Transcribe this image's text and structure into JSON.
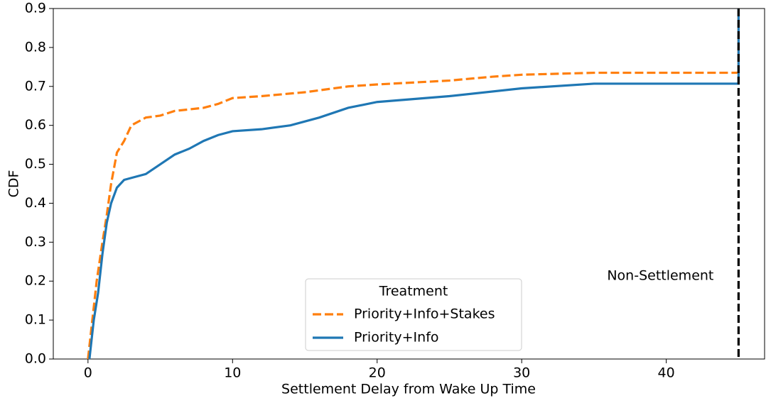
{
  "chart_data": {
    "type": "line",
    "xlabel": "Settlement Delay from Wake Up Time",
    "ylabel": "CDF",
    "xlim": [
      -2.4,
      46.8
    ],
    "ylim": [
      0,
      0.9
    ],
    "xticks": [
      0,
      10,
      20,
      30,
      40
    ],
    "yticks": [
      {
        "value": 0,
        "label": "0.0"
      },
      0.1,
      0.2,
      0.3,
      0.4,
      0.5,
      0.6,
      0.7,
      0.8,
      0.9
    ],
    "grid": false,
    "legend": {
      "title": "Treatment",
      "loc": "lower center"
    },
    "series": [
      {
        "name": "Priority+Info+Stakes",
        "color": "#ff7f0e",
        "dash": "dashed",
        "x": [
          0,
          0.3,
          0.6,
          1,
          1.3,
          1.6,
          2,
          2.5,
          3,
          4,
          5,
          6,
          8,
          9,
          10,
          12,
          15,
          18,
          20,
          25,
          28,
          30,
          35,
          45,
          45
        ],
        "values": [
          0,
          0.1,
          0.2,
          0.3,
          0.37,
          0.45,
          0.53,
          0.56,
          0.6,
          0.62,
          0.625,
          0.637,
          0.645,
          0.655,
          0.67,
          0.675,
          0.685,
          0.7,
          0.705,
          0.715,
          0.725,
          0.73,
          0.735,
          0.735,
          0.9
        ]
      },
      {
        "name": "Priority+Info",
        "color": "#1f77b4",
        "dash": "solid",
        "x": [
          0.1,
          0.4,
          0.7,
          1,
          1.3,
          1.6,
          2,
          2.5,
          3,
          4,
          5,
          6,
          7,
          8,
          9,
          10,
          12,
          14,
          16,
          18,
          20,
          25,
          30,
          35,
          45,
          45
        ],
        "values": [
          0,
          0.1,
          0.17,
          0.27,
          0.35,
          0.4,
          0.44,
          0.46,
          0.465,
          0.475,
          0.5,
          0.525,
          0.54,
          0.56,
          0.575,
          0.585,
          0.59,
          0.6,
          0.62,
          0.645,
          0.66,
          0.675,
          0.695,
          0.707,
          0.707,
          0.9
        ]
      }
    ],
    "vline": {
      "x": 45,
      "color": "#000000",
      "label": "Non-Settlement"
    }
  }
}
